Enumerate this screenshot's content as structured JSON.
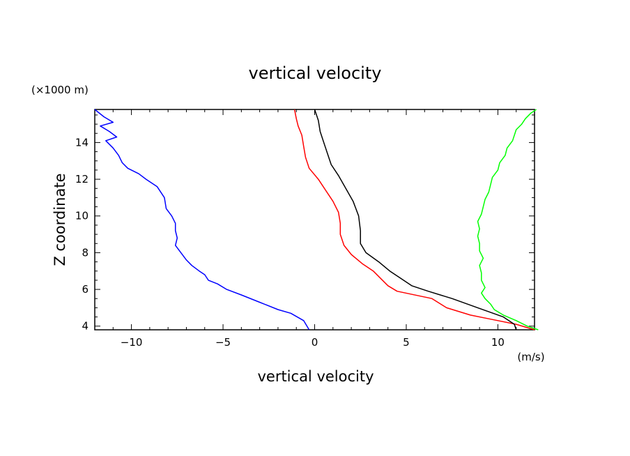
{
  "chart_data": {
    "type": "line",
    "title": "vertical velocity",
    "xlabel": "vertical velocity",
    "ylabel": "Z coordinate",
    "x_unit": "(m/s)",
    "y_unit": "(×1000 m)",
    "xlim": [
      -12,
      12
    ],
    "ylim": [
      3.8,
      15.8
    ],
    "x_ticks": [
      -10,
      -5,
      0,
      5,
      10
    ],
    "x_tick_labels": [
      "−10",
      "−5",
      "0",
      "5",
      "10"
    ],
    "y_ticks": [
      4,
      6,
      8,
      10,
      12,
      14
    ],
    "y_tick_labels": [
      "4",
      "6",
      "8",
      "10",
      "12",
      "14"
    ],
    "grid": false,
    "series": [
      {
        "color": "#0000ff",
        "points": [
          [
            -0.3,
            3.8
          ],
          [
            -0.6,
            4.3
          ],
          [
            -1.3,
            4.7
          ],
          [
            -2.0,
            4.9
          ],
          [
            -3.0,
            5.3
          ],
          [
            -4.0,
            5.7
          ],
          [
            -4.8,
            6.0
          ],
          [
            -5.3,
            6.3
          ],
          [
            -5.8,
            6.5
          ],
          [
            -6.0,
            6.8
          ],
          [
            -6.3,
            7.0
          ],
          [
            -6.7,
            7.3
          ],
          [
            -7.0,
            7.6
          ],
          [
            -7.3,
            8.0
          ],
          [
            -7.6,
            8.4
          ],
          [
            -7.5,
            8.8
          ],
          [
            -7.6,
            9.2
          ],
          [
            -7.6,
            9.6
          ],
          [
            -7.8,
            10.0
          ],
          [
            -8.1,
            10.4
          ],
          [
            -8.2,
            11.0
          ],
          [
            -8.6,
            11.6
          ],
          [
            -9.2,
            12.0
          ],
          [
            -9.6,
            12.3
          ],
          [
            -10.2,
            12.6
          ],
          [
            -10.5,
            12.9
          ],
          [
            -10.7,
            13.3
          ],
          [
            -11.0,
            13.7
          ],
          [
            -11.4,
            14.1
          ],
          [
            -10.8,
            14.3
          ],
          [
            -11.2,
            14.6
          ],
          [
            -11.7,
            14.9
          ],
          [
            -11.0,
            15.1
          ],
          [
            -11.5,
            15.4
          ],
          [
            -12.0,
            15.8
          ]
        ]
      },
      {
        "color": "#ff0000",
        "points": [
          [
            12.0,
            3.8
          ],
          [
            11.0,
            4.1
          ],
          [
            9.5,
            4.4
          ],
          [
            8.5,
            4.6
          ],
          [
            7.2,
            5.0
          ],
          [
            6.4,
            5.5
          ],
          [
            4.5,
            5.9
          ],
          [
            4.0,
            6.2
          ],
          [
            3.6,
            6.6
          ],
          [
            3.2,
            7.0
          ],
          [
            2.6,
            7.4
          ],
          [
            2.0,
            7.9
          ],
          [
            1.6,
            8.4
          ],
          [
            1.4,
            9.0
          ],
          [
            1.4,
            9.6
          ],
          [
            1.3,
            10.2
          ],
          [
            1.0,
            10.8
          ],
          [
            0.6,
            11.4
          ],
          [
            0.2,
            12.0
          ],
          [
            -0.3,
            12.6
          ],
          [
            -0.5,
            13.2
          ],
          [
            -0.6,
            13.8
          ],
          [
            -0.7,
            14.4
          ],
          [
            -0.9,
            14.9
          ],
          [
            -1.0,
            15.3
          ],
          [
            -1.1,
            15.8
          ]
        ]
      },
      {
        "color": "#000000",
        "points": [
          [
            11.0,
            3.8
          ],
          [
            10.9,
            4.1
          ],
          [
            10.3,
            4.5
          ],
          [
            8.9,
            5.0
          ],
          [
            7.5,
            5.5
          ],
          [
            6.2,
            5.9
          ],
          [
            5.3,
            6.2
          ],
          [
            4.7,
            6.6
          ],
          [
            4.1,
            7.0
          ],
          [
            3.5,
            7.5
          ],
          [
            2.8,
            8.0
          ],
          [
            2.5,
            8.5
          ],
          [
            2.5,
            9.2
          ],
          [
            2.4,
            10.0
          ],
          [
            2.1,
            10.8
          ],
          [
            1.7,
            11.5
          ],
          [
            1.3,
            12.2
          ],
          [
            0.9,
            12.8
          ],
          [
            0.7,
            13.4
          ],
          [
            0.5,
            14.0
          ],
          [
            0.3,
            14.6
          ],
          [
            0.2,
            15.2
          ],
          [
            0.0,
            15.8
          ]
        ]
      },
      {
        "color": "#00ff00",
        "points": [
          [
            12.2,
            3.8
          ],
          [
            11.6,
            4.0
          ],
          [
            11.0,
            4.3
          ],
          [
            10.3,
            4.6
          ],
          [
            9.8,
            4.9
          ],
          [
            9.6,
            5.2
          ],
          [
            9.3,
            5.5
          ],
          [
            9.1,
            5.8
          ],
          [
            9.3,
            6.1
          ],
          [
            9.1,
            6.5
          ],
          [
            9.1,
            6.9
          ],
          [
            9.0,
            7.3
          ],
          [
            9.2,
            7.7
          ],
          [
            9.0,
            8.1
          ],
          [
            9.0,
            8.5
          ],
          [
            8.9,
            8.9
          ],
          [
            9.0,
            9.3
          ],
          [
            8.9,
            9.7
          ],
          [
            9.1,
            10.1
          ],
          [
            9.2,
            10.5
          ],
          [
            9.3,
            10.9
          ],
          [
            9.5,
            11.3
          ],
          [
            9.6,
            11.7
          ],
          [
            9.7,
            12.1
          ],
          [
            10.0,
            12.5
          ],
          [
            10.1,
            12.9
          ],
          [
            10.4,
            13.3
          ],
          [
            10.5,
            13.7
          ],
          [
            10.8,
            14.1
          ],
          [
            10.9,
            14.4
          ],
          [
            11.0,
            14.7
          ],
          [
            11.3,
            15.0
          ],
          [
            11.5,
            15.3
          ],
          [
            11.8,
            15.6
          ],
          [
            12.1,
            15.8
          ]
        ]
      }
    ]
  }
}
